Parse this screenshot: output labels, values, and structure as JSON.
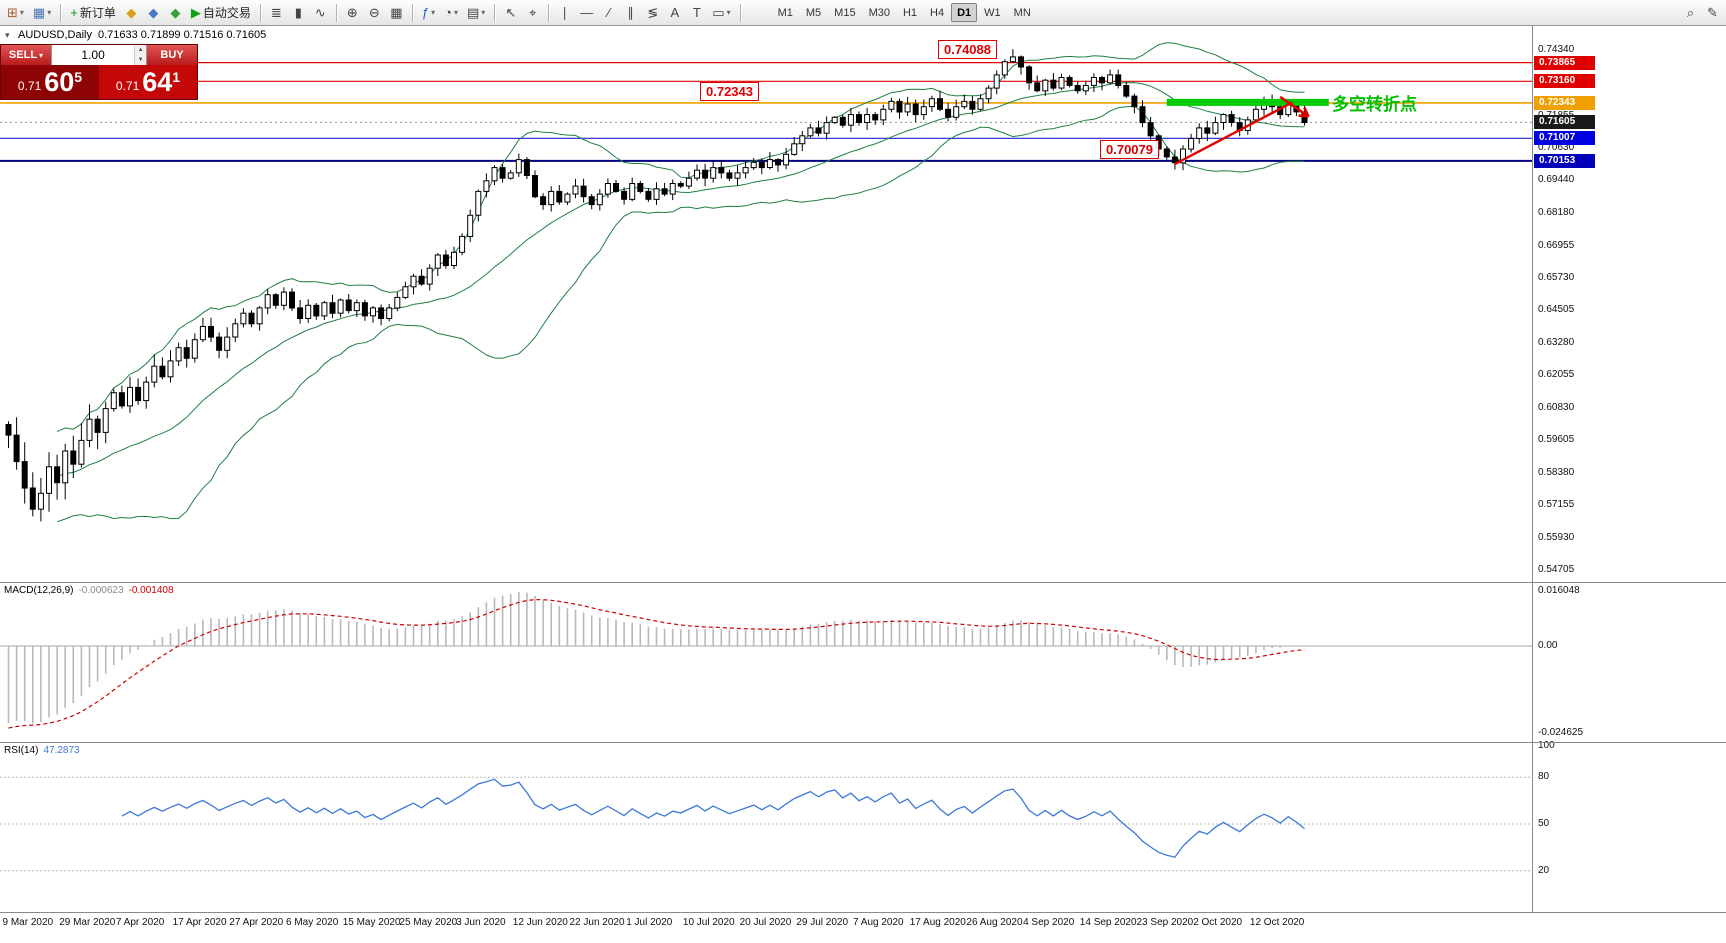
{
  "toolbar": {
    "groups": [
      {
        "items": [
          {
            "name": "new-chart-button",
            "glyph": "⊞",
            "color": "#b06030",
            "dropdown": true
          },
          {
            "name": "chart-profiles-button",
            "glyph": "▦",
            "color": "#4878b8",
            "dropdown": true
          }
        ]
      },
      {
        "items": [
          {
            "name": "new-order-button",
            "glyph": "+",
            "color": "#129212",
            "label": "新订单"
          },
          {
            "name": "metaeditor-button",
            "glyph": "◆",
            "color": "#d8a018"
          },
          {
            "name": "community-button",
            "glyph": "◆",
            "color": "#4878c8"
          },
          {
            "name": "service-button",
            "glyph": "◆",
            "color": "#38a038"
          },
          {
            "name": "autotrading-button",
            "glyph": "▶",
            "color": "#12a012",
            "label": "自动交易"
          }
        ]
      },
      {
        "items": [
          {
            "name": "bar-chart-button",
            "glyph": "≣"
          },
          {
            "name": "candlestick-chart-button",
            "glyph": "▮"
          },
          {
            "name": "line-chart-button",
            "glyph": "∿"
          }
        ]
      },
      {
        "items": [
          {
            "name": "zoom-in-button",
            "glyph": "⊕"
          },
          {
            "name": "zoom-out-button",
            "glyph": "⊖"
          },
          {
            "name": "tile-windows-button",
            "glyph": "▦"
          }
        ]
      },
      {
        "items": [
          {
            "name": "indicators-button",
            "glyph": "ƒ",
            "color": "#2060c0",
            "dropdown": true
          },
          {
            "name": "periods-button",
            "glyph": "◔",
            "dropdown": true
          },
          {
            "name": "templates-button",
            "glyph": "▤",
            "dropdown": true
          }
        ]
      },
      {
        "items": [
          {
            "name": "cursor-button",
            "glyph": "↖"
          },
          {
            "name": "crosshair-button",
            "glyph": "⌖"
          }
        ]
      },
      {
        "items": [
          {
            "name": "vertical-line-button",
            "glyph": "∣"
          },
          {
            "name": "horizontal-line-button",
            "glyph": "―"
          },
          {
            "name": "trendline-button",
            "glyph": "∕"
          },
          {
            "name": "channel-button",
            "glyph": "∥"
          },
          {
            "name": "fibonacci-button",
            "glyph": "≶"
          },
          {
            "name": "text-button",
            "glyph": "A"
          },
          {
            "name": "label-button",
            "glyph": "T"
          },
          {
            "name": "shapes-button",
            "glyph": "▭",
            "dropdown": true
          }
        ]
      }
    ],
    "timeframes": [
      "M1",
      "M5",
      "M15",
      "M30",
      "H1",
      "H4",
      "D1",
      "W1",
      "MN"
    ],
    "active_timeframe": "D1",
    "right_items": [
      {
        "name": "search-button",
        "glyph": "⌕"
      },
      {
        "name": "quick-draw-button",
        "glyph": "✎"
      }
    ]
  },
  "chart": {
    "title": "AUDUSD,Daily",
    "ohlc": "0.71633 0.71899 0.71516 0.71605",
    "current_price": 0.71605,
    "hlines": [
      {
        "price": 0.73865,
        "color": "#e00000",
        "width": 1.2
      },
      {
        "price": 0.7316,
        "color": "#e00000",
        "width": 1.2
      },
      {
        "price": 0.72343,
        "color": "#f0a000",
        "width": 1.6
      },
      {
        "price": 0.71007,
        "color": "#2020d0",
        "width": 1.2
      },
      {
        "price": 0.70153,
        "color": "#000080",
        "width": 2
      }
    ],
    "overlays": {
      "support_bar": {
        "from_index": 143,
        "to_index": 163,
        "price": 0.7236,
        "color": "#00cc00"
      },
      "trend_line": {
        "from_index": 144,
        "from_price": 0.7003,
        "to_index": 158.5,
        "to_price": 0.7236,
        "color": "#e00000"
      },
      "arrow": {
        "from_index": 157,
        "from_price": 0.7257,
        "to_index": 160.5,
        "to_price": 0.7183,
        "color": "#e00000"
      }
    }
  },
  "trade_panel": {
    "sell_label": "SELL",
    "buy_label": "BUY",
    "volume": "1.00",
    "sell_price": {
      "base": "0.71",
      "pips": "60",
      "fraction": "5"
    },
    "buy_price": {
      "base": "0.71",
      "pips": "64",
      "fraction": "1"
    }
  },
  "annotations": {
    "peak": "0.74088",
    "mid": "0.72343",
    "low": "0.70079",
    "turning_point": "多空转折点"
  },
  "price_scale": {
    "ticks": [
      "0.74340",
      "0.71855",
      "0.70630",
      "0.69440",
      "0.68180",
      "0.66955",
      "0.65730",
      "0.64505",
      "0.63280",
      "0.62055",
      "0.60830",
      "0.59605",
      "0.58380",
      "0.57155",
      "0.55930",
      "0.54705"
    ],
    "tags": [
      {
        "value": "0.73865",
        "color": "#e00000"
      },
      {
        "value": "0.73160",
        "color": "#e00000"
      },
      {
        "value": "0.72343",
        "color": "#f0a000"
      },
      {
        "value": "0.71605",
        "color": "#1a1a1a"
      },
      {
        "value": "0.71007",
        "color": "#0000e0"
      },
      {
        "value": "0.70153",
        "color": "#0000b8"
      }
    ]
  },
  "macd": {
    "label": "MACD(12,26,9)",
    "value_main": "-0.000623",
    "value_signal": "-0.001408",
    "scale": [
      "0.016048",
      "0.00",
      "-0.024625"
    ]
  },
  "rsi": {
    "label": "RSI(14)",
    "value": "47.2873",
    "scale": [
      "100",
      "80",
      "50",
      "20"
    ]
  },
  "chart_data": {
    "type": "candlestick",
    "symbol": "AUDUSD",
    "timeframe": "Daily",
    "ohlc_display": {
      "open": 0.71633,
      "high": 0.71899,
      "low": 0.71516,
      "close": 0.71605
    },
    "price_range": {
      "top": 0.7434,
      "bottom": 0.54705
    },
    "hlines": [
      0.73865,
      0.7316,
      0.72343,
      0.71007,
      0.70153
    ],
    "annotation_prices": [
      0.74088,
      0.72343,
      0.70079
    ],
    "indicators": [
      {
        "name": "Bollinger Bands",
        "settings": "20,2"
      },
      {
        "name": "MACD",
        "settings": "12,26,9",
        "values": [
          -0.000623,
          -0.001408
        ]
      },
      {
        "name": "RSI",
        "settings": "14",
        "value": 47.2873
      }
    ],
    "x_labels": [
      "9 Mar 2020",
      "29 Mar 2020",
      "7 Apr 2020",
      "17 Apr 2020",
      "27 Apr 2020",
      "6 May 2020",
      "15 May 2020",
      "25 May 2020",
      "3 Jun 2020",
      "12 Jun 2020",
      "22 Jun 2020",
      "1 Jul 2020",
      "10 Jul 2020",
      "20 Jul 2020",
      "29 Jul 2020",
      "7 Aug 2020",
      "17 Aug 2020",
      "26 Aug 2020",
      "4 Sep 2020",
      "14 Sep 2020",
      "23 Sep 2020",
      "2 Oct 2020",
      "12 Oct 2020"
    ],
    "closes": [
      0.598,
      0.588,
      0.578,
      0.57,
      0.576,
      0.586,
      0.58,
      0.592,
      0.587,
      0.596,
      0.604,
      0.599,
      0.608,
      0.614,
      0.609,
      0.616,
      0.611,
      0.618,
      0.624,
      0.62,
      0.626,
      0.631,
      0.627,
      0.634,
      0.639,
      0.635,
      0.63,
      0.635,
      0.64,
      0.644,
      0.64,
      0.646,
      0.651,
      0.647,
      0.652,
      0.646,
      0.642,
      0.647,
      0.643,
      0.648,
      0.644,
      0.649,
      0.645,
      0.648,
      0.643,
      0.646,
      0.642,
      0.646,
      0.65,
      0.654,
      0.658,
      0.655,
      0.661,
      0.666,
      0.662,
      0.667,
      0.673,
      0.681,
      0.69,
      0.694,
      0.699,
      0.695,
      0.697,
      0.702,
      0.696,
      0.688,
      0.685,
      0.69,
      0.686,
      0.689,
      0.692,
      0.688,
      0.685,
      0.689,
      0.693,
      0.69,
      0.687,
      0.693,
      0.69,
      0.687,
      0.691,
      0.689,
      0.693,
      0.692,
      0.695,
      0.698,
      0.695,
      0.699,
      0.697,
      0.695,
      0.697,
      0.699,
      0.701,
      0.699,
      0.702,
      0.7,
      0.704,
      0.708,
      0.711,
      0.714,
      0.712,
      0.716,
      0.718,
      0.715,
      0.719,
      0.716,
      0.719,
      0.717,
      0.721,
      0.724,
      0.72,
      0.723,
      0.719,
      0.722,
      0.725,
      0.721,
      0.718,
      0.722,
      0.724,
      0.721,
      0.725,
      0.729,
      0.734,
      0.739,
      0.7408,
      0.737,
      0.731,
      0.728,
      0.732,
      0.729,
      0.733,
      0.73,
      0.728,
      0.73,
      0.733,
      0.731,
      0.734,
      0.73,
      0.726,
      0.722,
      0.716,
      0.711,
      0.706,
      0.703,
      0.7008,
      0.706,
      0.71,
      0.714,
      0.712,
      0.716,
      0.719,
      0.716,
      0.713,
      0.717,
      0.721,
      0.724,
      0.722,
      0.719,
      0.723,
      0.72,
      0.71605
    ]
  }
}
